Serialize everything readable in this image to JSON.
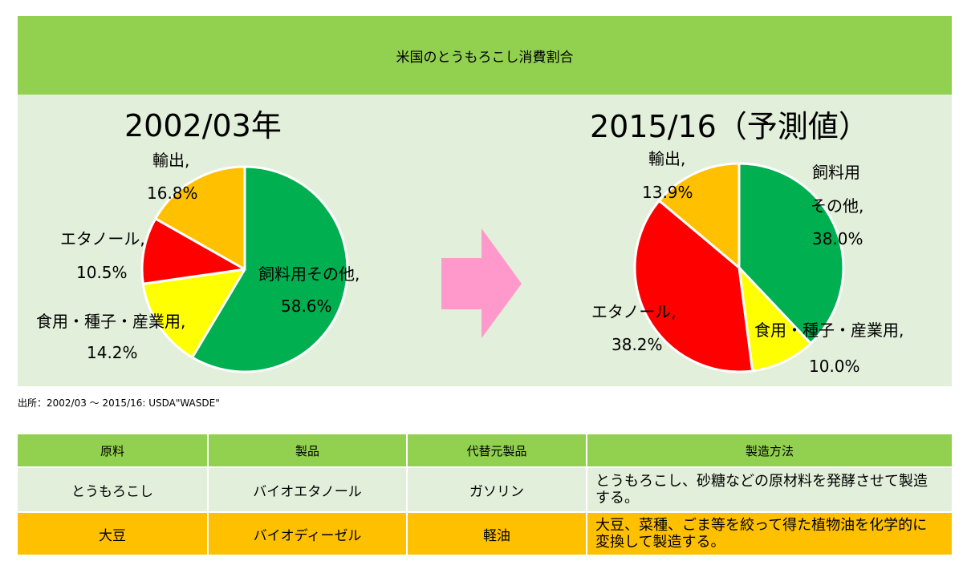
{
  "header": {
    "title": "米国のとうもろこし消費割合"
  },
  "colors": {
    "header_bg": "#92D050",
    "panel_bg": "#E2EFDA"
  },
  "chart_data": [
    {
      "type": "pie",
      "title": "2002/03年",
      "slices": [
        {
          "label_lines": [
            "飼料用その他,"
          ],
          "value": 58.6,
          "value_label": "58.6%",
          "color": "#00B050"
        },
        {
          "label_lines": [
            "食用・種子・産業用,"
          ],
          "value": 14.2,
          "value_label": "14.2%",
          "color": "#FFFF00"
        },
        {
          "label_lines": [
            "エタノール,"
          ],
          "value": 10.5,
          "value_label": "10.5%",
          "color": "#FF0000"
        },
        {
          "label_lines": [
            "輸出,"
          ],
          "value": 16.8,
          "value_label": "16.8%",
          "color": "#FFC000"
        }
      ]
    },
    {
      "type": "pie",
      "title": "2015/16（予測値）",
      "slices": [
        {
          "label_lines": [
            "飼料用",
            "その他,"
          ],
          "value": 38.0,
          "value_label": "38.0%",
          "color": "#00B050"
        },
        {
          "label_lines": [
            "食用・種子・産業用,"
          ],
          "value": 10.0,
          "value_label": "10.0%",
          "color": "#FFFF00"
        },
        {
          "label_lines": [
            "エタノール,"
          ],
          "value": 38.2,
          "value_label": "38.2%",
          "color": "#FF0000"
        },
        {
          "label_lines": [
            "輸出,"
          ],
          "value": 13.9,
          "value_label": "13.9%",
          "color": "#FFC000"
        }
      ]
    }
  ],
  "arrow": {
    "icon": "right-arrow-icon",
    "color": "#FF99CC"
  },
  "source": "出所：2002/03 ～ 2015/16: USDA\"WASDE\"",
  "table": {
    "headers": [
      "原料",
      "製品",
      "代替元製品",
      "製造方法"
    ],
    "rows": [
      {
        "color": "#E2EFDA",
        "cells": [
          "とうもろこし",
          "バイオエタノール",
          "ガソリン",
          "とうもろこし、砂糖などの原材料を発酵させて製造する。"
        ]
      },
      {
        "color": "#FFC000",
        "cells": [
          "大豆",
          "バイオディーゼル",
          "軽油",
          "大豆、菜種、ごま等を絞って得た植物油を化学的に変換して製造する。"
        ]
      }
    ]
  }
}
